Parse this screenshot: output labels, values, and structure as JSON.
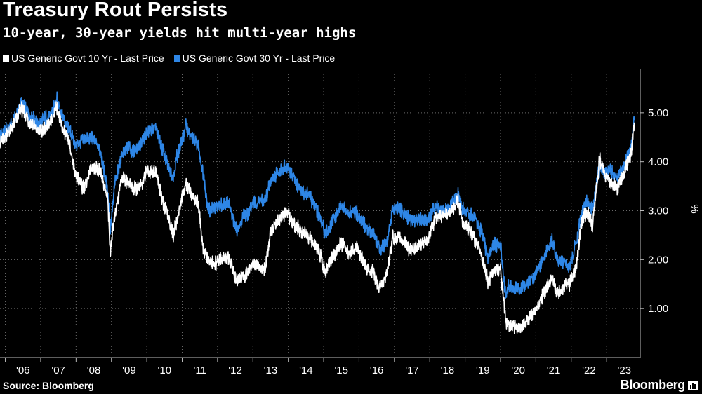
{
  "chart_data": {
    "type": "line",
    "title": "Treasury Rout Persists",
    "subtitle": "10-year, 30-year yields hit multi-year highs",
    "xlabel": "",
    "ylabel": "%",
    "ylim": [
      0.0,
      5.9
    ],
    "xlim": [
      2005.85,
      2023.95
    ],
    "yticks": [
      1.0,
      2.0,
      3.0,
      4.0,
      5.0
    ],
    "ytick_labels": [
      "1.00",
      "2.00",
      "3.00",
      "4.00",
      "5.00"
    ],
    "xtick_labels": [
      "'06",
      "'07",
      "'08",
      "'09",
      "'10",
      "'11",
      "'12",
      "'13",
      "'14",
      "'15",
      "'16",
      "'17",
      "'18",
      "'19",
      "'20",
      "'21",
      "'22",
      "'23"
    ],
    "legend_position": "top-left",
    "series": [
      {
        "name": "US Generic Govt 30 Yr - Last Price",
        "color": "#2e86e6",
        "x": [
          2005.85,
          2006.2,
          2006.45,
          2006.7,
          2006.95,
          2007.15,
          2007.3,
          2007.45,
          2007.6,
          2007.8,
          2008.0,
          2008.2,
          2008.45,
          2008.7,
          2008.9,
          2008.97,
          2009.1,
          2009.3,
          2009.45,
          2009.6,
          2009.8,
          2010.0,
          2010.25,
          2010.45,
          2010.6,
          2010.75,
          2010.85,
          2011.0,
          2011.1,
          2011.25,
          2011.45,
          2011.6,
          2011.75,
          2011.9,
          2012.1,
          2012.3,
          2012.55,
          2012.7,
          2012.85,
          2013.0,
          2013.2,
          2013.35,
          2013.5,
          2013.7,
          2013.95,
          2014.2,
          2014.4,
          2014.6,
          2014.85,
          2015.05,
          2015.3,
          2015.5,
          2015.7,
          2015.95,
          2016.2,
          2016.4,
          2016.6,
          2016.8,
          2016.95,
          2017.2,
          2017.45,
          2017.7,
          2017.95,
          2018.15,
          2018.35,
          2018.55,
          2018.8,
          2018.95,
          2019.2,
          2019.45,
          2019.65,
          2019.8,
          2020.0,
          2020.15,
          2020.22,
          2020.5,
          2020.75,
          2020.95,
          2021.2,
          2021.45,
          2021.6,
          2021.8,
          2021.95,
          2022.15,
          2022.3,
          2022.45,
          2022.6,
          2022.8,
          2022.95,
          2023.1,
          2023.3,
          2023.5,
          2023.7,
          2023.78
        ],
        "values": [
          4.55,
          4.75,
          5.2,
          4.95,
          4.75,
          4.9,
          4.95,
          5.3,
          4.95,
          4.65,
          4.35,
          4.45,
          4.5,
          4.2,
          3.4,
          2.6,
          3.55,
          4.15,
          4.3,
          4.2,
          4.35,
          4.6,
          4.7,
          4.25,
          3.9,
          3.7,
          4.1,
          4.45,
          4.75,
          4.5,
          4.35,
          3.7,
          3.0,
          3.05,
          3.1,
          3.2,
          2.55,
          2.85,
          2.95,
          3.15,
          3.2,
          3.2,
          3.6,
          3.8,
          3.9,
          3.6,
          3.4,
          3.3,
          2.95,
          2.5,
          2.85,
          3.1,
          2.95,
          2.95,
          2.65,
          2.55,
          2.2,
          2.4,
          3.05,
          3.0,
          2.8,
          2.85,
          2.8,
          3.1,
          3.0,
          3.05,
          3.35,
          3.0,
          2.9,
          2.6,
          2.05,
          2.3,
          2.3,
          1.2,
          1.45,
          1.4,
          1.5,
          1.65,
          2.0,
          2.4,
          2.0,
          1.95,
          1.85,
          2.4,
          3.0,
          3.2,
          3.0,
          3.95,
          3.75,
          3.85,
          3.65,
          3.95,
          4.3,
          4.85
        ]
      },
      {
        "name": "US Generic Govt 10 Yr - Last Price",
        "color": "#ffffff",
        "x": [
          2005.85,
          2006.2,
          2006.45,
          2006.7,
          2006.95,
          2007.15,
          2007.3,
          2007.45,
          2007.6,
          2007.8,
          2008.0,
          2008.2,
          2008.45,
          2008.7,
          2008.9,
          2008.97,
          2009.1,
          2009.3,
          2009.45,
          2009.6,
          2009.8,
          2010.0,
          2010.25,
          2010.45,
          2010.6,
          2010.75,
          2010.85,
          2011.0,
          2011.1,
          2011.25,
          2011.45,
          2011.6,
          2011.75,
          2011.9,
          2012.1,
          2012.3,
          2012.55,
          2012.7,
          2012.85,
          2013.0,
          2013.2,
          2013.35,
          2013.5,
          2013.7,
          2013.95,
          2014.2,
          2014.4,
          2014.6,
          2014.85,
          2015.05,
          2015.3,
          2015.5,
          2015.7,
          2015.95,
          2016.2,
          2016.4,
          2016.6,
          2016.8,
          2016.95,
          2017.2,
          2017.45,
          2017.7,
          2017.95,
          2018.15,
          2018.35,
          2018.55,
          2018.8,
          2018.95,
          2019.2,
          2019.45,
          2019.65,
          2019.8,
          2020.0,
          2020.15,
          2020.22,
          2020.5,
          2020.75,
          2020.95,
          2021.2,
          2021.45,
          2021.6,
          2021.8,
          2021.95,
          2022.15,
          2022.3,
          2022.45,
          2022.6,
          2022.8,
          2022.95,
          2023.1,
          2023.3,
          2023.5,
          2023.7,
          2023.78
        ],
        "values": [
          4.4,
          4.7,
          5.1,
          4.8,
          4.6,
          4.7,
          4.8,
          5.15,
          4.7,
          4.4,
          3.7,
          3.45,
          3.9,
          3.8,
          3.2,
          2.15,
          2.95,
          3.7,
          3.6,
          3.45,
          3.45,
          3.8,
          3.8,
          3.2,
          2.9,
          2.5,
          2.8,
          3.3,
          3.55,
          3.35,
          3.15,
          2.2,
          1.95,
          1.9,
          2.0,
          2.05,
          1.55,
          1.65,
          1.75,
          1.95,
          1.85,
          1.8,
          2.6,
          2.8,
          2.95,
          2.7,
          2.55,
          2.45,
          2.2,
          1.75,
          2.1,
          2.35,
          2.15,
          2.25,
          1.85,
          1.75,
          1.4,
          1.75,
          2.45,
          2.4,
          2.2,
          2.3,
          2.4,
          2.85,
          2.9,
          2.95,
          3.2,
          2.7,
          2.55,
          2.1,
          1.55,
          1.75,
          1.8,
          0.75,
          0.65,
          0.6,
          0.75,
          0.9,
          1.3,
          1.6,
          1.3,
          1.45,
          1.5,
          1.9,
          2.8,
          3.0,
          2.7,
          4.05,
          3.75,
          3.6,
          3.45,
          3.8,
          4.2,
          4.8
        ]
      }
    ]
  },
  "legend": {
    "items": [
      {
        "label": "US Generic Govt 10 Yr - Last Price",
        "color": "#ffffff"
      },
      {
        "label": "US Generic Govt 30 Yr - Last Price",
        "color": "#2e86e6"
      }
    ]
  },
  "footer": {
    "source": "Source: Bloomberg",
    "logo": "Bloomberg"
  }
}
